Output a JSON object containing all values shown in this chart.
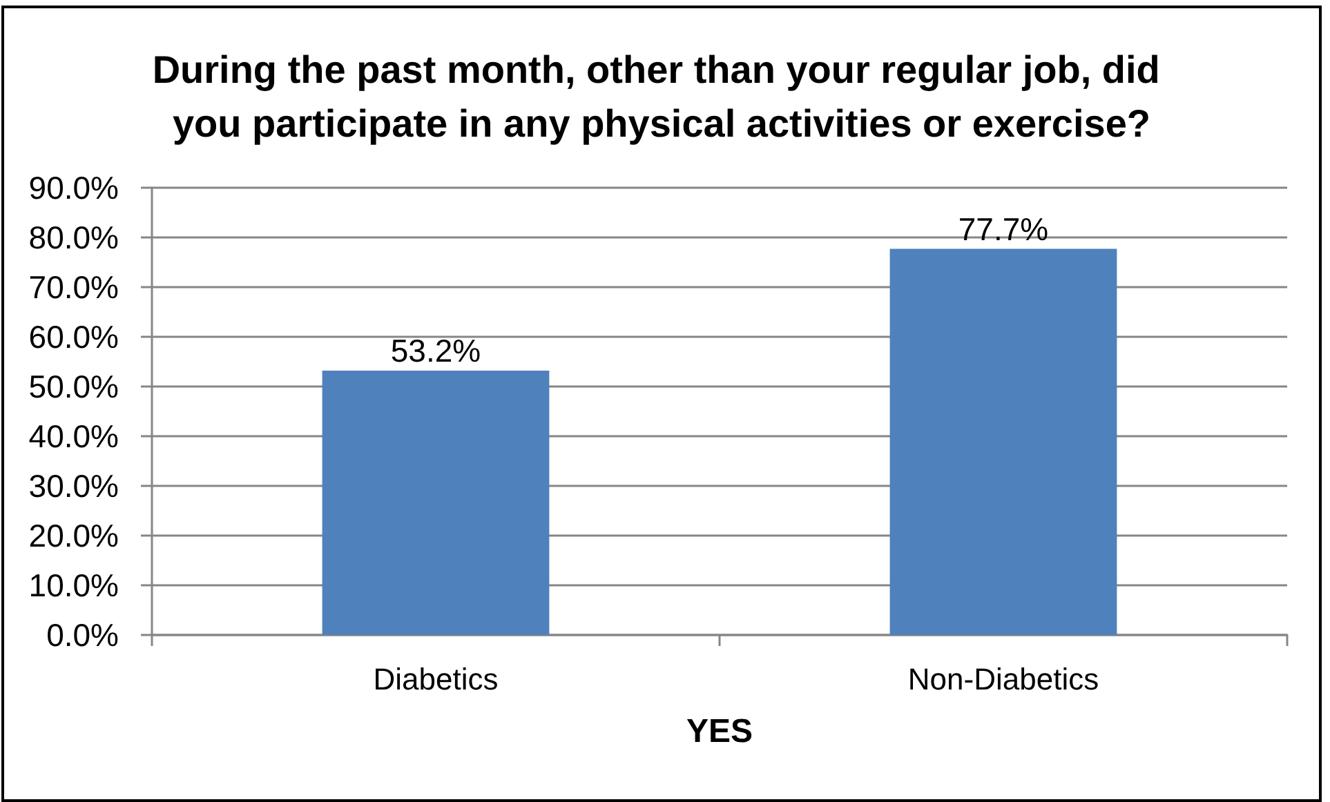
{
  "chart_data": {
    "type": "bar",
    "title": "During the past month, other than your regular job, did you participate in any physical activities or exercise?",
    "xlabel": "YES",
    "categories": [
      "Diabetics",
      "Non-Diabetics"
    ],
    "values": [
      53.2,
      77.7
    ],
    "color": "#4f81bd",
    "value_labels": [
      "53.2%",
      "77.7%"
    ],
    "ylim": [
      0,
      90
    ],
    "yticks": [
      {
        "value": 0,
        "label": "0.0%"
      },
      {
        "value": 10,
        "label": "10.0%"
      },
      {
        "value": 20,
        "label": "20.0%"
      },
      {
        "value": 30,
        "label": "30.0%"
      },
      {
        "value": 40,
        "label": "40.0%"
      },
      {
        "value": 50,
        "label": "50.0%"
      },
      {
        "value": 60,
        "label": "60.0%"
      },
      {
        "value": 70,
        "label": "70.0%"
      },
      {
        "value": 80,
        "label": "80.0%"
      },
      {
        "value": 90,
        "label": "90.0%"
      }
    ],
    "grid": "y"
  }
}
